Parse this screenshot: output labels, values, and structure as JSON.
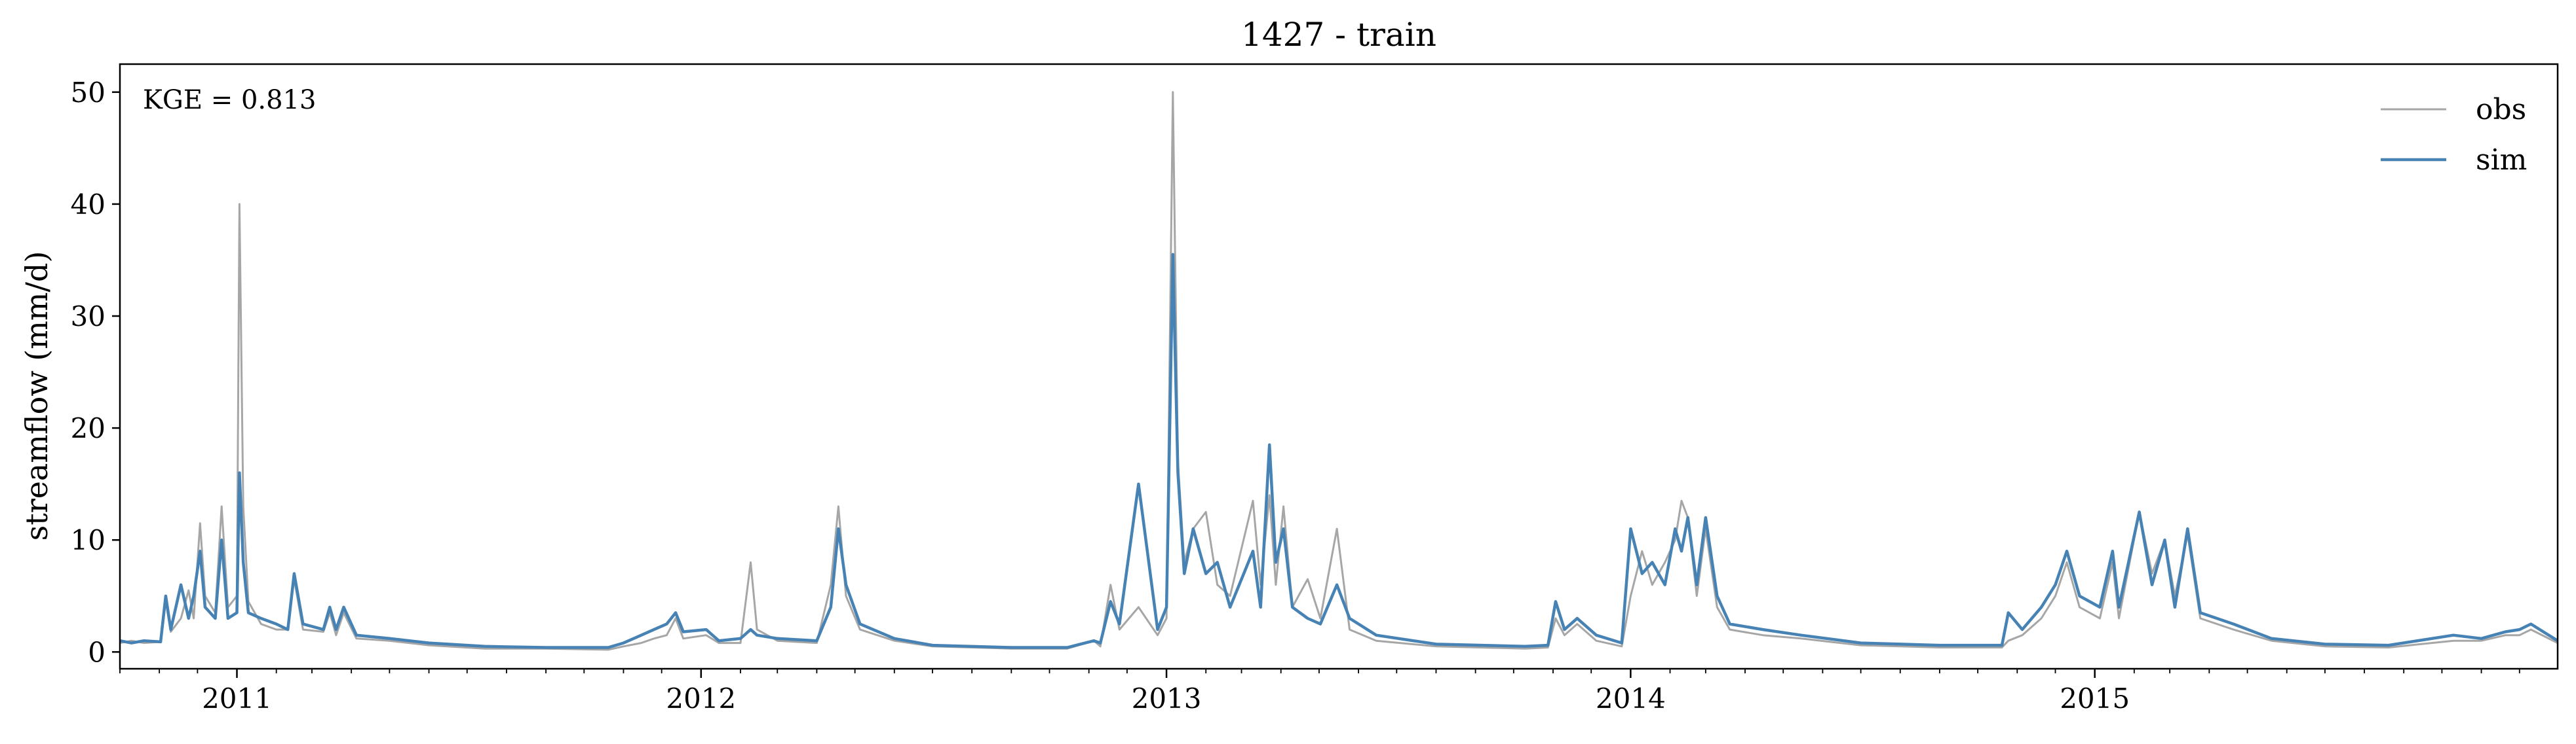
{
  "chart_data": {
    "type": "line",
    "title": "1427 - train",
    "xlabel": "",
    "ylabel": "streamflow (mm/d)",
    "xlim": [
      "2010-10-01",
      "2015-12-31"
    ],
    "ylim": [
      -1.5,
      52.5
    ],
    "yticks": [
      0,
      10,
      20,
      30,
      40,
      50
    ],
    "xticks": [
      {
        "date": "2011-01-01",
        "label": "2011"
      },
      {
        "date": "2012-01-01",
        "label": "2012"
      },
      {
        "date": "2013-01-01",
        "label": "2013"
      },
      {
        "date": "2014-01-01",
        "label": "2014"
      },
      {
        "date": "2015-01-01",
        "label": "2015"
      }
    ],
    "annotation": "KGE = 0.813",
    "legend_position": "top-right",
    "grid": false,
    "series": [
      {
        "name": "obs",
        "color": "#a6a6a6",
        "points": [
          [
            "2010-10-01",
            0.8
          ],
          [
            "2010-10-10",
            1.0
          ],
          [
            "2010-10-20",
            0.8
          ],
          [
            "2010-11-02",
            0.9
          ],
          [
            "2010-11-06",
            4.5
          ],
          [
            "2010-11-10",
            1.8
          ],
          [
            "2010-11-18",
            3.0
          ],
          [
            "2010-11-24",
            5.5
          ],
          [
            "2010-11-28",
            3.0
          ],
          [
            "2010-12-03",
            11.5
          ],
          [
            "2010-12-07",
            5.0
          ],
          [
            "2010-12-15",
            3.5
          ],
          [
            "2010-12-20",
            13.0
          ],
          [
            "2010-12-25",
            4.0
          ],
          [
            "2011-01-01",
            5.0
          ],
          [
            "2011-01-03",
            40.0
          ],
          [
            "2011-01-06",
            13.0
          ],
          [
            "2011-01-10",
            4.5
          ],
          [
            "2011-01-20",
            2.5
          ],
          [
            "2011-02-01",
            2.0
          ],
          [
            "2011-02-10",
            2.0
          ],
          [
            "2011-02-15",
            6.5
          ],
          [
            "2011-02-22",
            2.0
          ],
          [
            "2011-03-10",
            1.8
          ],
          [
            "2011-03-15",
            3.5
          ],
          [
            "2011-03-20",
            1.5
          ],
          [
            "2011-03-26",
            3.5
          ],
          [
            "2011-04-05",
            1.2
          ],
          [
            "2011-05-01",
            1.0
          ],
          [
            "2011-06-01",
            0.6
          ],
          [
            "2011-07-15",
            0.3
          ],
          [
            "2011-09-01",
            0.3
          ],
          [
            "2011-10-20",
            0.2
          ],
          [
            "2011-11-01",
            0.5
          ],
          [
            "2011-11-15",
            0.8
          ],
          [
            "2011-11-25",
            1.2
          ],
          [
            "2011-12-05",
            1.5
          ],
          [
            "2011-12-12",
            3.0
          ],
          [
            "2011-12-18",
            1.2
          ],
          [
            "2012-01-05",
            1.5
          ],
          [
            "2012-01-15",
            0.8
          ],
          [
            "2012-02-01",
            0.8
          ],
          [
            "2012-02-09",
            8.0
          ],
          [
            "2012-02-14",
            2.0
          ],
          [
            "2012-03-01",
            1.0
          ],
          [
            "2012-04-01",
            0.8
          ],
          [
            "2012-04-12",
            6.0
          ],
          [
            "2012-04-18",
            13.0
          ],
          [
            "2012-04-24",
            5.0
          ],
          [
            "2012-05-05",
            2.0
          ],
          [
            "2012-06-01",
            1.0
          ],
          [
            "2012-07-01",
            0.5
          ],
          [
            "2012-09-01",
            0.3
          ],
          [
            "2012-10-15",
            0.3
          ],
          [
            "2012-11-05",
            1.0
          ],
          [
            "2012-11-10",
            0.5
          ],
          [
            "2012-11-18",
            6.0
          ],
          [
            "2012-11-25",
            2.0
          ],
          [
            "2012-12-10",
            4.0
          ],
          [
            "2012-12-25",
            1.5
          ],
          [
            "2013-01-01",
            3.0
          ],
          [
            "2013-01-06",
            50.0
          ],
          [
            "2013-01-10",
            17.0
          ],
          [
            "2013-01-15",
            8.0
          ],
          [
            "2013-01-22",
            11.0
          ],
          [
            "2013-02-01",
            12.5
          ],
          [
            "2013-02-10",
            6.0
          ],
          [
            "2013-02-20",
            5.0
          ],
          [
            "2013-03-10",
            13.5
          ],
          [
            "2013-03-16",
            6.0
          ],
          [
            "2013-03-23",
            14.0
          ],
          [
            "2013-03-28",
            6.0
          ],
          [
            "2013-04-03",
            13.0
          ],
          [
            "2013-04-10",
            4.0
          ],
          [
            "2013-04-22",
            6.5
          ],
          [
            "2013-05-02",
            3.0
          ],
          [
            "2013-05-15",
            11.0
          ],
          [
            "2013-05-25",
            2.0
          ],
          [
            "2013-06-15",
            1.0
          ],
          [
            "2013-08-01",
            0.5
          ],
          [
            "2013-10-10",
            0.3
          ],
          [
            "2013-10-28",
            0.4
          ],
          [
            "2013-11-03",
            3.0
          ],
          [
            "2013-11-10",
            1.5
          ],
          [
            "2013-11-20",
            2.5
          ],
          [
            "2013-12-05",
            1.0
          ],
          [
            "2013-12-25",
            0.5
          ],
          [
            "2014-01-01",
            5.0
          ],
          [
            "2014-01-10",
            9.0
          ],
          [
            "2014-01-18",
            6.0
          ],
          [
            "2014-01-28",
            8.0
          ],
          [
            "2014-02-05",
            10.0
          ],
          [
            "2014-02-10",
            13.5
          ],
          [
            "2014-02-15",
            12.0
          ],
          [
            "2014-02-22",
            5.0
          ],
          [
            "2014-03-01",
            11.0
          ],
          [
            "2014-03-10",
            4.0
          ],
          [
            "2014-03-20",
            2.0
          ],
          [
            "2014-04-15",
            1.5
          ],
          [
            "2014-05-15",
            1.2
          ],
          [
            "2014-07-01",
            0.6
          ],
          [
            "2014-09-01",
            0.4
          ],
          [
            "2014-10-20",
            0.4
          ],
          [
            "2014-10-25",
            1.0
          ],
          [
            "2014-11-05",
            1.5
          ],
          [
            "2014-11-20",
            3.0
          ],
          [
            "2014-12-01",
            5.0
          ],
          [
            "2014-12-10",
            8.0
          ],
          [
            "2014-12-20",
            4.0
          ],
          [
            "2015-01-05",
            3.0
          ],
          [
            "2015-01-15",
            8.0
          ],
          [
            "2015-01-20",
            3.0
          ],
          [
            "2015-02-05",
            12.5
          ],
          [
            "2015-02-15",
            7.0
          ],
          [
            "2015-02-25",
            10.0
          ],
          [
            "2015-03-05",
            5.0
          ],
          [
            "2015-03-15",
            10.5
          ],
          [
            "2015-03-25",
            3.0
          ],
          [
            "2015-04-20",
            2.0
          ],
          [
            "2015-05-20",
            1.0
          ],
          [
            "2015-07-01",
            0.5
          ],
          [
            "2015-08-20",
            0.4
          ],
          [
            "2015-10-10",
            1.0
          ],
          [
            "2015-11-01",
            1.0
          ],
          [
            "2015-11-20",
            1.5
          ],
          [
            "2015-12-01",
            1.5
          ],
          [
            "2015-12-10",
            2.0
          ],
          [
            "2015-12-31",
            0.8
          ]
        ]
      },
      {
        "name": "sim",
        "color": "#4682b4",
        "points": [
          [
            "2010-10-01",
            1.0
          ],
          [
            "2010-10-10",
            0.8
          ],
          [
            "2010-10-20",
            1.0
          ],
          [
            "2010-11-02",
            0.9
          ],
          [
            "2010-11-06",
            5.0
          ],
          [
            "2010-11-10",
            2.0
          ],
          [
            "2010-11-18",
            6.0
          ],
          [
            "2010-11-24",
            3.0
          ],
          [
            "2010-11-28",
            5.0
          ],
          [
            "2010-12-03",
            9.0
          ],
          [
            "2010-12-07",
            4.0
          ],
          [
            "2010-12-15",
            3.0
          ],
          [
            "2010-12-20",
            10.0
          ],
          [
            "2010-12-25",
            3.0
          ],
          [
            "2011-01-01",
            3.5
          ],
          [
            "2011-01-03",
            16.0
          ],
          [
            "2011-01-06",
            8.0
          ],
          [
            "2011-01-10",
            3.5
          ],
          [
            "2011-01-20",
            3.0
          ],
          [
            "2011-02-01",
            2.5
          ],
          [
            "2011-02-10",
            2.0
          ],
          [
            "2011-02-15",
            7.0
          ],
          [
            "2011-02-22",
            2.5
          ],
          [
            "2011-03-10",
            2.0
          ],
          [
            "2011-03-15",
            4.0
          ],
          [
            "2011-03-20",
            2.0
          ],
          [
            "2011-03-26",
            4.0
          ],
          [
            "2011-04-05",
            1.5
          ],
          [
            "2011-05-01",
            1.2
          ],
          [
            "2011-06-01",
            0.8
          ],
          [
            "2011-07-15",
            0.5
          ],
          [
            "2011-09-01",
            0.4
          ],
          [
            "2011-10-20",
            0.4
          ],
          [
            "2011-11-01",
            0.8
          ],
          [
            "2011-11-15",
            1.5
          ],
          [
            "2011-11-25",
            2.0
          ],
          [
            "2011-12-05",
            2.5
          ],
          [
            "2011-12-12",
            3.5
          ],
          [
            "2011-12-18",
            1.8
          ],
          [
            "2012-01-05",
            2.0
          ],
          [
            "2012-01-15",
            1.0
          ],
          [
            "2012-02-01",
            1.2
          ],
          [
            "2012-02-09",
            2.0
          ],
          [
            "2012-02-14",
            1.5
          ],
          [
            "2012-03-01",
            1.2
          ],
          [
            "2012-04-01",
            1.0
          ],
          [
            "2012-04-12",
            4.0
          ],
          [
            "2012-04-18",
            11.0
          ],
          [
            "2012-04-24",
            6.0
          ],
          [
            "2012-05-05",
            2.5
          ],
          [
            "2012-06-01",
            1.2
          ],
          [
            "2012-07-01",
            0.6
          ],
          [
            "2012-09-01",
            0.4
          ],
          [
            "2012-10-15",
            0.4
          ],
          [
            "2012-11-05",
            1.0
          ],
          [
            "2012-11-10",
            0.8
          ],
          [
            "2012-11-18",
            4.5
          ],
          [
            "2012-11-25",
            2.5
          ],
          [
            "2012-12-10",
            15.0
          ],
          [
            "2012-12-25",
            2.0
          ],
          [
            "2013-01-01",
            4.0
          ],
          [
            "2013-01-06",
            35.5
          ],
          [
            "2013-01-10",
            16.0
          ],
          [
            "2013-01-15",
            7.0
          ],
          [
            "2013-01-22",
            11.0
          ],
          [
            "2013-02-01",
            7.0
          ],
          [
            "2013-02-10",
            8.0
          ],
          [
            "2013-02-20",
            4.0
          ],
          [
            "2013-03-10",
            9.0
          ],
          [
            "2013-03-16",
            4.0
          ],
          [
            "2013-03-23",
            18.5
          ],
          [
            "2013-03-28",
            8.0
          ],
          [
            "2013-04-03",
            11.0
          ],
          [
            "2013-04-10",
            4.0
          ],
          [
            "2013-04-22",
            3.0
          ],
          [
            "2013-05-02",
            2.5
          ],
          [
            "2013-05-15",
            6.0
          ],
          [
            "2013-05-25",
            3.0
          ],
          [
            "2013-06-15",
            1.5
          ],
          [
            "2013-08-01",
            0.7
          ],
          [
            "2013-10-10",
            0.5
          ],
          [
            "2013-10-28",
            0.6
          ],
          [
            "2013-11-03",
            4.5
          ],
          [
            "2013-11-10",
            2.0
          ],
          [
            "2013-11-20",
            3.0
          ],
          [
            "2013-12-05",
            1.5
          ],
          [
            "2013-12-25",
            0.8
          ],
          [
            "2014-01-01",
            11.0
          ],
          [
            "2014-01-10",
            7.0
          ],
          [
            "2014-01-18",
            8.0
          ],
          [
            "2014-01-28",
            6.0
          ],
          [
            "2014-02-05",
            11.0
          ],
          [
            "2014-02-10",
            9.0
          ],
          [
            "2014-02-15",
            12.0
          ],
          [
            "2014-02-22",
            6.0
          ],
          [
            "2014-03-01",
            12.0
          ],
          [
            "2014-03-10",
            5.0
          ],
          [
            "2014-03-20",
            2.5
          ],
          [
            "2014-04-15",
            2.0
          ],
          [
            "2014-05-15",
            1.5
          ],
          [
            "2014-07-01",
            0.8
          ],
          [
            "2014-09-01",
            0.6
          ],
          [
            "2014-10-20",
            0.6
          ],
          [
            "2014-10-25",
            3.5
          ],
          [
            "2014-11-05",
            2.0
          ],
          [
            "2014-11-20",
            4.0
          ],
          [
            "2014-12-01",
            6.0
          ],
          [
            "2014-12-10",
            9.0
          ],
          [
            "2014-12-20",
            5.0
          ],
          [
            "2015-01-05",
            4.0
          ],
          [
            "2015-01-15",
            9.0
          ],
          [
            "2015-01-20",
            4.0
          ],
          [
            "2015-02-05",
            12.5
          ],
          [
            "2015-02-15",
            6.0
          ],
          [
            "2015-02-25",
            10.0
          ],
          [
            "2015-03-05",
            4.0
          ],
          [
            "2015-03-15",
            11.0
          ],
          [
            "2015-03-25",
            3.5
          ],
          [
            "2015-04-20",
            2.5
          ],
          [
            "2015-05-20",
            1.2
          ],
          [
            "2015-07-01",
            0.7
          ],
          [
            "2015-08-20",
            0.6
          ],
          [
            "2015-10-10",
            1.5
          ],
          [
            "2015-11-01",
            1.2
          ],
          [
            "2015-11-20",
            1.8
          ],
          [
            "2015-12-01",
            2.0
          ],
          [
            "2015-12-10",
            2.5
          ],
          [
            "2015-12-31",
            1.0
          ]
        ]
      }
    ]
  }
}
